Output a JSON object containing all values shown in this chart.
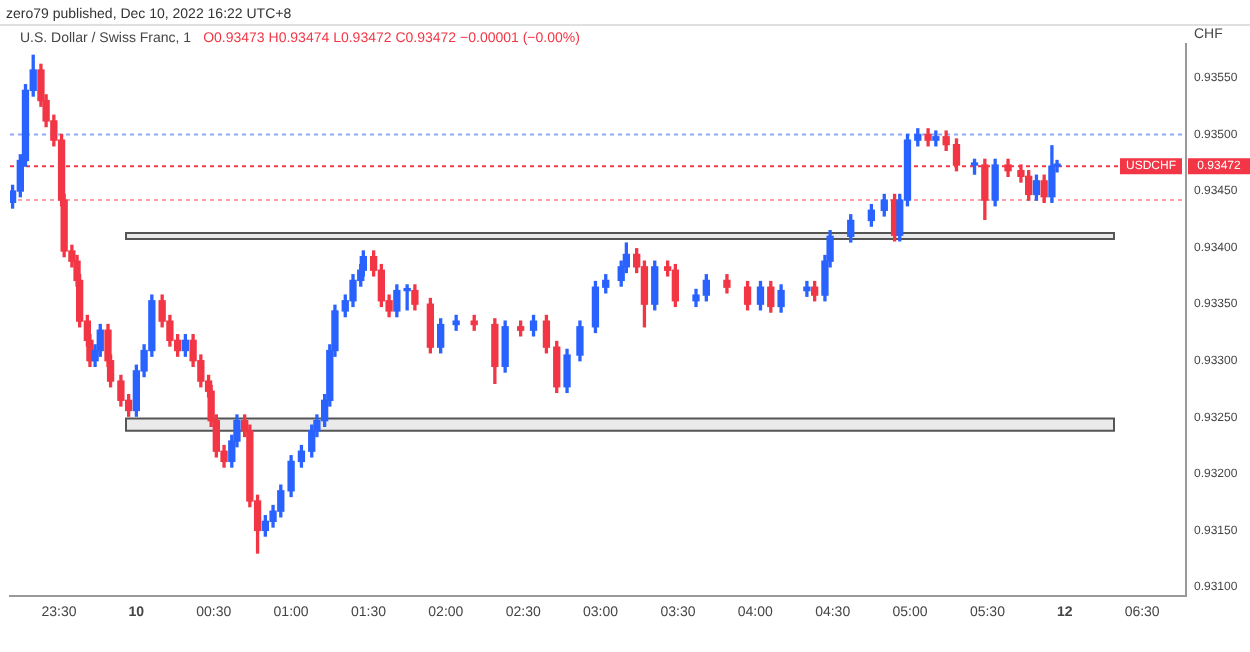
{
  "chart_data": {
    "type": "candlestick",
    "title": "U.S. Dollar / Swiss Franc, 1",
    "subtitle": "O0.93473 H0.93474 L0.93472 C0.93472 −0.00001 (−0.00%)",
    "ylabel": "CHF",
    "annotations": [
      "zero79 published, Dec 10, 2022 16:22 UTC+8",
      "0.93472"
    ],
    "x": [
      "2022-12-09T23:12",
      "2022-12-09T23:15",
      "2022-12-09T23:17",
      "2022-12-09T23:20",
      "2022-12-09T23:23",
      "2022-12-09T23:25",
      "2022-12-09T23:28",
      "2022-12-09T23:31",
      "2022-12-09T23:32",
      "2022-12-09T23:35",
      "2022-12-09T23:37",
      "2022-12-09T23:38",
      "2022-12-09T23:41",
      "2022-12-09T23:42",
      "2022-12-09T23:44",
      "2022-12-09T23:46",
      "2022-12-09T23:49",
      "2022-12-09T23:50",
      "2022-12-09T23:54",
      "2022-12-09T23:57",
      "2022-12-10T00:00",
      "2022-12-10T00:03",
      "2022-12-10T00:06",
      "2022-12-10T00:10",
      "2022-12-10T00:13",
      "2022-12-10T00:16",
      "2022-12-10T00:19",
      "2022-12-10T00:22",
      "2022-12-10T00:25",
      "2022-12-10T00:28",
      "2022-12-10T00:29",
      "2022-12-10T00:31",
      "2022-12-10T00:34",
      "2022-12-10T00:37",
      "2022-12-10T00:39",
      "2022-12-10T00:42",
      "2022-12-10T00:44",
      "2022-12-10T00:47",
      "2022-12-10T00:50",
      "2022-12-10T00:53",
      "2022-12-10T00:56",
      "2022-12-10T01:00",
      "2022-12-10T01:04",
      "2022-12-10T01:08",
      "2022-12-10T01:10",
      "2022-12-10T01:13",
      "2022-12-10T01:15",
      "2022-12-10T01:17",
      "2022-12-10T01:21",
      "2022-12-10T01:24",
      "2022-12-10T01:27",
      "2022-12-10T01:28",
      "2022-12-10T01:32",
      "2022-12-10T01:35",
      "2022-12-10T01:38",
      "2022-12-10T01:41",
      "2022-12-10T01:45",
      "2022-12-10T01:48",
      "2022-12-10T01:54",
      "2022-12-10T01:58",
      "2022-12-10T02:04",
      "2022-12-10T02:11",
      "2022-12-10T02:19",
      "2022-12-10T02:23",
      "2022-12-10T02:29",
      "2022-12-10T02:34",
      "2022-12-10T02:39",
      "2022-12-10T02:43",
      "2022-12-10T02:47",
      "2022-12-10T02:52",
      "2022-12-10T02:58",
      "2022-12-10T03:02",
      "2022-12-10T03:08",
      "2022-12-10T03:10",
      "2022-12-10T03:14",
      "2022-12-10T03:17",
      "2022-12-10T03:21",
      "2022-12-10T03:26",
      "2022-12-10T03:29",
      "2022-12-10T03:37",
      "2022-12-10T03:41",
      "2022-12-10T03:49",
      "2022-12-10T03:57",
      "2022-12-10T04:02",
      "2022-12-10T04:06",
      "2022-12-10T04:10",
      "2022-12-10T04:20",
      "2022-12-10T04:23",
      "2022-12-10T04:27",
      "2022-12-10T04:29",
      "2022-12-10T04:37",
      "2022-12-10T04:45",
      "2022-12-10T04:50",
      "2022-12-10T04:54",
      "2022-12-10T04:56",
      "2022-12-10T04:59",
      "2022-12-10T05:03",
      "2022-12-10T05:07",
      "2022-12-10T05:10",
      "2022-12-10T05:14",
      "2022-12-10T05:18",
      "2022-12-10T05:25",
      "2022-12-10T05:29",
      "2022-12-10T05:33",
      "2022-12-10T05:38",
      "2022-12-10T05:43",
      "2022-12-10T05:46",
      "2022-12-10T05:49",
      "2022-12-10T05:52",
      "2022-12-10T05:55",
      "2022-12-10T05:57"
    ],
    "ohlc": [
      [
        0.9344,
        0.93455,
        0.93435,
        0.9345
      ],
      [
        0.9345,
        0.93482,
        0.93445,
        0.93477
      ],
      [
        0.93477,
        0.93544,
        0.93472,
        0.93539
      ],
      [
        0.93539,
        0.9357,
        0.93534,
        0.93557
      ],
      [
        0.93557,
        0.93562,
        0.93525,
        0.9353
      ],
      [
        0.9353,
        0.93535,
        0.93507,
        0.93512
      ],
      [
        0.93512,
        0.93517,
        0.9349,
        0.93495
      ],
      [
        0.93495,
        0.935,
        0.93437,
        0.93442
      ],
      [
        0.93442,
        0.93447,
        0.93392,
        0.93397
      ],
      [
        0.93397,
        0.93402,
        0.93383,
        0.93388
      ],
      [
        0.93388,
        0.93393,
        0.93366,
        0.93371
      ],
      [
        0.93371,
        0.93376,
        0.9333,
        0.93335
      ],
      [
        0.93335,
        0.9334,
        0.93313,
        0.93318
      ],
      [
        0.93318,
        0.93323,
        0.93295,
        0.933
      ],
      [
        0.933,
        0.93314,
        0.93295,
        0.93309
      ],
      [
        0.93309,
        0.93332,
        0.93304,
        0.93327
      ],
      [
        0.93327,
        0.93332,
        0.93295,
        0.933
      ],
      [
        0.933,
        0.93305,
        0.93277,
        0.93282
      ],
      [
        0.93282,
        0.93287,
        0.9326,
        0.93265
      ],
      [
        0.93265,
        0.9327,
        0.93251,
        0.93256
      ],
      [
        0.93256,
        0.93296,
        0.93251,
        0.93291
      ],
      [
        0.93291,
        0.93314,
        0.93286,
        0.93309
      ],
      [
        0.93309,
        0.93358,
        0.93304,
        0.93353
      ],
      [
        0.93353,
        0.93358,
        0.9333,
        0.93335
      ],
      [
        0.93335,
        0.9334,
        0.93313,
        0.93318
      ],
      [
        0.93318,
        0.93323,
        0.93304,
        0.93309
      ],
      [
        0.93309,
        0.93323,
        0.93304,
        0.93318
      ],
      [
        0.93318,
        0.93323,
        0.93295,
        0.933
      ],
      [
        0.933,
        0.93305,
        0.93277,
        0.93282
      ],
      [
        0.93282,
        0.93287,
        0.93268,
        0.93273
      ],
      [
        0.93273,
        0.93278,
        0.93242,
        0.93247
      ],
      [
        0.93247,
        0.93252,
        0.93215,
        0.9322
      ],
      [
        0.9322,
        0.93225,
        0.93206,
        0.93211
      ],
      [
        0.93211,
        0.93234,
        0.93206,
        0.93229
      ],
      [
        0.93229,
        0.93252,
        0.93224,
        0.93247
      ],
      [
        0.93247,
        0.93252,
        0.93233,
        0.93238
      ],
      [
        0.93238,
        0.93243,
        0.93171,
        0.93176
      ],
      [
        0.93176,
        0.93181,
        0.9313,
        0.9315
      ],
      [
        0.9315,
        0.93163,
        0.93145,
        0.93158
      ],
      [
        0.93158,
        0.93172,
        0.93153,
        0.93167
      ],
      [
        0.93167,
        0.9319,
        0.93162,
        0.93185
      ],
      [
        0.93185,
        0.93216,
        0.9318,
        0.93211
      ],
      [
        0.93211,
        0.93225,
        0.93206,
        0.9322
      ],
      [
        0.9322,
        0.93243,
        0.93215,
        0.93238
      ],
      [
        0.93238,
        0.93252,
        0.93233,
        0.93247
      ],
      [
        0.93247,
        0.9327,
        0.93242,
        0.93265
      ],
      [
        0.93265,
        0.93314,
        0.9326,
        0.93309
      ],
      [
        0.93309,
        0.93349,
        0.93304,
        0.93344
      ],
      [
        0.93344,
        0.93358,
        0.93339,
        0.93353
      ],
      [
        0.93353,
        0.93376,
        0.93348,
        0.93371
      ],
      [
        0.93371,
        0.93385,
        0.93366,
        0.9338
      ],
      [
        0.9338,
        0.93397,
        0.93375,
        0.93392
      ],
      [
        0.93392,
        0.93397,
        0.93375,
        0.9338
      ],
      [
        0.9338,
        0.93385,
        0.93348,
        0.93353
      ],
      [
        0.93353,
        0.93358,
        0.93339,
        0.93344
      ],
      [
        0.93344,
        0.93367,
        0.93339,
        0.93362
      ],
      [
        0.93362,
        0.93367,
        0.93345,
        0.93362
      ],
      [
        0.93362,
        0.93367,
        0.93345,
        0.9335
      ],
      [
        0.9335,
        0.93355,
        0.93307,
        0.93312
      ],
      [
        0.93312,
        0.93337,
        0.93307,
        0.93332
      ],
      [
        0.93332,
        0.9334,
        0.93327,
        0.93335
      ],
      [
        0.93335,
        0.9334,
        0.93327,
        0.93332
      ],
      [
        0.93332,
        0.93337,
        0.9328,
        0.93295
      ],
      [
        0.93295,
        0.93335,
        0.9329,
        0.9333
      ],
      [
        0.9333,
        0.93335,
        0.93322,
        0.93327
      ],
      [
        0.93327,
        0.9334,
        0.93322,
        0.93335
      ],
      [
        0.93335,
        0.9334,
        0.93307,
        0.93312
      ],
      [
        0.93312,
        0.93317,
        0.93272,
        0.93277
      ],
      [
        0.93277,
        0.9331,
        0.93272,
        0.93305
      ],
      [
        0.93305,
        0.93335,
        0.933,
        0.9333
      ],
      [
        0.9333,
        0.9337,
        0.93325,
        0.93365
      ],
      [
        0.93365,
        0.93376,
        0.9336,
        0.93371
      ],
      [
        0.93371,
        0.93388,
        0.93366,
        0.93383
      ],
      [
        0.93383,
        0.93404,
        0.93378,
        0.93394
      ],
      [
        0.93394,
        0.93399,
        0.93378,
        0.93383
      ],
      [
        0.93383,
        0.93388,
        0.9333,
        0.9335
      ],
      [
        0.9335,
        0.93388,
        0.93345,
        0.93383
      ],
      [
        0.93383,
        0.93388,
        0.93375,
        0.9338
      ],
      [
        0.9338,
        0.93385,
        0.93348,
        0.93353
      ],
      [
        0.93353,
        0.93363,
        0.93348,
        0.93358
      ],
      [
        0.93358,
        0.93376,
        0.93353,
        0.93371
      ],
      [
        0.93371,
        0.93376,
        0.9336,
        0.93365
      ],
      [
        0.93365,
        0.9337,
        0.93345,
        0.9335
      ],
      [
        0.9335,
        0.9337,
        0.93345,
        0.93365
      ],
      [
        0.93365,
        0.9337,
        0.93343,
        0.93348
      ],
      [
        0.93348,
        0.93367,
        0.93343,
        0.93362
      ],
      [
        0.93362,
        0.9337,
        0.93357,
        0.93365
      ],
      [
        0.93365,
        0.9337,
        0.93353,
        0.93358
      ],
      [
        0.93358,
        0.93393,
        0.93353,
        0.93388
      ],
      [
        0.93388,
        0.93415,
        0.93383,
        0.9341
      ],
      [
        0.9341,
        0.93429,
        0.93405,
        0.93424
      ],
      [
        0.93424,
        0.93438,
        0.93419,
        0.93433
      ],
      [
        0.93433,
        0.93447,
        0.93428,
        0.93442
      ],
      [
        0.93442,
        0.93447,
        0.93406,
        0.93411
      ],
      [
        0.93411,
        0.93447,
        0.93406,
        0.93442
      ],
      [
        0.93442,
        0.935,
        0.93437,
        0.93495
      ],
      [
        0.93495,
        0.93505,
        0.9349,
        0.935
      ],
      [
        0.935,
        0.93505,
        0.9349,
        0.93495
      ],
      [
        0.93495,
        0.93503,
        0.9349,
        0.93498
      ],
      [
        0.93498,
        0.93503,
        0.93486,
        0.93491
      ],
      [
        0.93491,
        0.93496,
        0.93468,
        0.93473
      ],
      [
        0.93473,
        0.93478,
        0.93465,
        0.93473
      ],
      [
        0.93473,
        0.93478,
        0.93425,
        0.93442
      ],
      [
        0.93442,
        0.93478,
        0.93437,
        0.93473
      ],
      [
        0.93473,
        0.93478,
        0.93463,
        0.93468
      ],
      [
        0.93468,
        0.93473,
        0.93458,
        0.93463
      ],
      [
        0.93463,
        0.93468,
        0.93442,
        0.93447
      ],
      [
        0.93447,
        0.93464,
        0.93442,
        0.93459
      ],
      [
        0.93459,
        0.93464,
        0.9344,
        0.93445
      ],
      [
        0.93445,
        0.9349,
        0.9344,
        0.93472
      ],
      [
        0.93472,
        0.93477,
        0.93467,
        0.93472
      ]
    ],
    "colors": [
      "#2962ff",
      "#2962ff",
      "#2962ff",
      "#2962ff",
      "#f23645",
      "#f23645",
      "#f23645",
      "#f23645",
      "#f23645",
      "#f23645",
      "#f23645",
      "#f23645",
      "#f23645",
      "#f23645",
      "#2962ff",
      "#2962ff",
      "#f23645",
      "#f23645",
      "#f23645",
      "#f23645",
      "#2962ff",
      "#2962ff",
      "#2962ff",
      "#f23645",
      "#f23645",
      "#f23645",
      "#2962ff",
      "#f23645",
      "#f23645",
      "#f23645",
      "#f23645",
      "#f23645",
      "#f23645",
      "#2962ff",
      "#2962ff",
      "#f23645",
      "#f23645",
      "#f23645",
      "#2962ff",
      "#2962ff",
      "#2962ff",
      "#2962ff",
      "#2962ff",
      "#2962ff",
      "#2962ff",
      "#2962ff",
      "#2962ff",
      "#2962ff",
      "#2962ff",
      "#2962ff",
      "#2962ff",
      "#2962ff",
      "#f23645",
      "#f23645",
      "#f23645",
      "#2962ff",
      "#2962ff",
      "#f23645",
      "#f23645",
      "#2962ff",
      "#2962ff",
      "#f23645",
      "#f23645",
      "#2962ff",
      "#f23645",
      "#2962ff",
      "#f23645",
      "#f23645",
      "#2962ff",
      "#2962ff",
      "#2962ff",
      "#2962ff",
      "#2962ff",
      "#2962ff",
      "#f23645",
      "#f23645",
      "#2962ff",
      "#f23645",
      "#f23645",
      "#2962ff",
      "#2962ff",
      "#f23645",
      "#f23645",
      "#2962ff",
      "#f23645",
      "#2962ff",
      "#2962ff",
      "#f23645",
      "#2962ff",
      "#2962ff",
      "#2962ff",
      "#2962ff",
      "#2962ff",
      "#f23645",
      "#2962ff",
      "#2962ff",
      "#2962ff",
      "#f23645",
      "#2962ff",
      "#f23645",
      "#f23645",
      "#2962ff",
      "#f23645",
      "#2962ff",
      "#f23645",
      "#f23645",
      "#f23645",
      "#2962ff",
      "#f23645",
      "#2962ff",
      "#2962ff"
    ],
    "xlim": [
      "2022-12-09T23:11",
      "2022-12-10T06:47"
    ],
    "xticks": [
      {
        "value": "2022-12-09T23:30",
        "label": "23:30"
      },
      {
        "value": "2022-12-10T00:00",
        "label": "10"
      },
      {
        "value": "2022-12-10T00:30",
        "label": "00:30"
      },
      {
        "value": "2022-12-10T01:00",
        "label": "01:00"
      },
      {
        "value": "2022-12-10T01:30",
        "label": "01:30"
      },
      {
        "value": "2022-12-10T02:00",
        "label": "02:00"
      },
      {
        "value": "2022-12-10T02:30",
        "label": "02:30"
      },
      {
        "value": "2022-12-10T03:00",
        "label": "03:00"
      },
      {
        "value": "2022-12-10T03:30",
        "label": "03:30"
      },
      {
        "value": "2022-12-10T04:00",
        "label": "04:00"
      },
      {
        "value": "2022-12-10T04:30",
        "label": "04:30"
      },
      {
        "value": "2022-12-10T05:00",
        "label": "05:00"
      },
      {
        "value": "2022-12-10T05:30",
        "label": "05:30"
      },
      {
        "value": "2022-12-10T06:00",
        "label": "12"
      },
      {
        "value": "2022-12-10T06:30",
        "label": "06:30"
      }
    ],
    "ylim": [
      0.93092,
      0.9358
    ],
    "yticks": [
      {
        "value": 0.931,
        "label": "0.93100"
      },
      {
        "value": 0.9315,
        "label": "0.93150"
      },
      {
        "value": 0.932,
        "label": "0.93200"
      },
      {
        "value": 0.9325,
        "label": "0.93250"
      },
      {
        "value": 0.933,
        "label": "0.93300"
      },
      {
        "value": 0.9335,
        "label": "0.93350"
      },
      {
        "value": 0.934,
        "label": "0.93400"
      },
      {
        "value": 0.9345,
        "label": "0.93450"
      },
      {
        "value": 0.935,
        "label": "0.93500"
      },
      {
        "value": 0.9355,
        "label": "0.93550"
      }
    ],
    "ref_lines": [
      {
        "axis": "y",
        "value": 0.935,
        "color": "#8fa8f5",
        "line_style": "dotted"
      },
      {
        "axis": "y",
        "value": 0.93472,
        "label": "USDCHF",
        "color": "#f23645",
        "line_style": "dotted"
      },
      {
        "axis": "y",
        "value": 0.93442,
        "color": "#f7a1a8",
        "line_style": "dotted"
      }
    ],
    "bands": [
      {
        "axis": "y",
        "from": 0.93238,
        "to": 0.93249,
        "color": "#555555"
      },
      {
        "axis": "y",
        "from": 0.93408,
        "to": 0.93413,
        "color": "#555555"
      }
    ],
    "grid": false,
    "legend": false
  }
}
